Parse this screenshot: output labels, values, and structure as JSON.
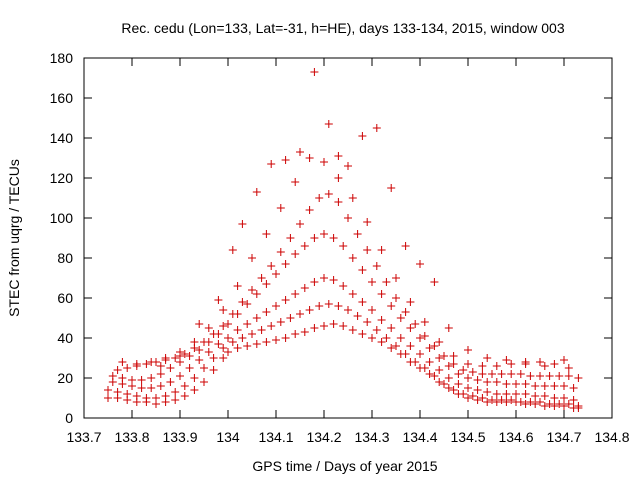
{
  "chart_data": {
    "type": "scatter",
    "title": "Rec. cedu (Lon=133, Lat=-31, h=HE), days 133-134, 2015, window 003",
    "xlabel": "GPS time / Days of year 2015",
    "ylabel": "STEC from uqrg / TECUs",
    "xlim": [
      133.7,
      134.8
    ],
    "ylim": [
      0,
      180
    ],
    "xticks": [
      133.7,
      133.8,
      133.9,
      134.0,
      134.1,
      134.2,
      134.3,
      134.4,
      134.5,
      134.6,
      134.7,
      134.8
    ],
    "xtick_labels": [
      "133.7",
      "133.8",
      "133.9",
      "134",
      "134.1",
      "134.2",
      "134.3",
      "134.4",
      "134.5",
      "134.6",
      "134.7",
      "134.8"
    ],
    "yticks": [
      0,
      20,
      40,
      60,
      80,
      100,
      120,
      140,
      160,
      180
    ],
    "ytick_labels": [
      "0",
      "20",
      "40",
      "60",
      "80",
      "100",
      "120",
      "140",
      "160",
      "180"
    ],
    "grid": false,
    "marker": "plus",
    "color": "#cc0000",
    "series": [
      {
        "x": [
          133.75,
          133.77,
          133.79,
          133.81,
          133.83,
          133.85,
          133.87,
          133.89,
          133.91,
          133.93,
          133.95,
          133.97,
          133.99,
          134.0,
          134.02,
          134.04,
          134.06,
          134.08,
          134.1,
          134.12,
          134.14,
          134.16,
          134.18,
          134.2,
          134.22,
          134.24,
          134.26,
          134.28,
          134.3,
          134.32,
          134.34,
          134.36,
          134.38,
          134.4,
          134.42,
          134.44,
          134.46,
          134.48,
          134.5,
          134.52,
          134.54,
          134.56,
          134.58,
          134.6,
          134.62,
          134.64,
          134.66,
          134.68,
          134.7,
          134.72,
          134.73
        ],
        "y": [
          10,
          10,
          9,
          8,
          8,
          7,
          8,
          9,
          11,
          14,
          18,
          24,
          30,
          33,
          35,
          36,
          37,
          38,
          39,
          40,
          42,
          43,
          45,
          46,
          47,
          46,
          44,
          42,
          40,
          38,
          35,
          32,
          28,
          25,
          22,
          18,
          15,
          12,
          10,
          9,
          8,
          8,
          8,
          8,
          7,
          7,
          6,
          6,
          6,
          5,
          5
        ]
      },
      {
        "x": [
          133.75,
          133.77,
          133.79,
          133.81,
          133.83,
          133.85,
          133.87,
          133.89,
          133.91,
          133.93,
          133.95,
          133.97,
          133.99,
          134.01,
          134.03,
          134.05,
          134.07,
          134.09,
          134.11,
          134.13,
          134.15,
          134.17,
          134.19,
          134.21,
          134.23,
          134.25,
          134.27,
          134.29,
          134.31,
          134.33,
          134.35,
          134.37,
          134.39,
          134.41,
          134.43,
          134.45,
          134.47,
          134.49,
          134.51,
          134.53,
          134.55,
          134.57,
          134.59,
          134.61,
          134.63,
          134.65,
          134.67,
          134.69,
          134.71,
          134.73
        ],
        "y": [
          14,
          13,
          12,
          11,
          10,
          10,
          11,
          13,
          16,
          20,
          25,
          30,
          35,
          38,
          40,
          42,
          44,
          46,
          48,
          50,
          52,
          54,
          56,
          57,
          56,
          54,
          51,
          48,
          44,
          40,
          36,
          32,
          28,
          25,
          21,
          17,
          14,
          12,
          11,
          10,
          9,
          9,
          9,
          8,
          8,
          8,
          7,
          7,
          7,
          6
        ]
      },
      {
        "x": [
          133.76,
          133.78,
          133.8,
          133.82,
          133.84,
          133.86,
          133.88,
          133.9,
          133.92,
          133.94,
          133.96,
          133.98,
          134.0,
          134.02,
          134.04,
          134.06,
          134.08,
          134.1,
          134.12,
          134.14,
          134.16,
          134.18,
          134.2,
          134.22,
          134.24,
          134.26,
          134.28,
          134.3,
          134.32,
          134.34,
          134.36,
          134.38,
          134.4,
          134.42,
          134.44,
          134.46,
          134.48,
          134.5,
          134.52,
          134.54,
          134.56,
          134.58,
          134.6,
          134.62,
          134.64,
          134.66,
          134.68,
          134.7,
          134.72
        ],
        "y": [
          18,
          17,
          16,
          15,
          15,
          16,
          18,
          21,
          25,
          29,
          33,
          37,
          40,
          44,
          47,
          50,
          53,
          56,
          59,
          62,
          65,
          68,
          70,
          69,
          66,
          62,
          58,
          54,
          49,
          45,
          40,
          36,
          32,
          28,
          24,
          20,
          17,
          15,
          14,
          13,
          12,
          12,
          12,
          12,
          11,
          11,
          10,
          10,
          9
        ]
      },
      {
        "x": [
          133.76,
          133.78,
          133.8,
          133.82,
          133.84,
          133.86,
          133.88,
          133.9,
          133.92,
          133.94,
          133.96,
          133.98,
          134.0,
          134.02,
          134.04,
          134.06,
          134.08,
          134.1,
          134.12,
          134.14,
          134.16,
          134.18,
          134.2,
          134.22,
          134.24,
          134.26,
          134.28,
          134.3,
          134.32,
          134.34,
          134.36,
          134.38,
          134.4,
          134.42,
          134.44,
          134.46,
          134.48,
          134.5,
          134.52,
          134.54,
          134.56,
          134.58,
          134.6,
          134.62,
          134.64,
          134.66,
          134.68,
          134.7,
          134.72
        ],
        "y": [
          21,
          20,
          19,
          19,
          20,
          22,
          25,
          28,
          31,
          34,
          38,
          42,
          47,
          52,
          57,
          62,
          67,
          72,
          77,
          82,
          86,
          90,
          92,
          90,
          86,
          80,
          74,
          68,
          62,
          56,
          50,
          45,
          40,
          35,
          30,
          26,
          22,
          20,
          19,
          18,
          18,
          17,
          17,
          17,
          16,
          16,
          16,
          16,
          15
        ]
      },
      {
        "x": [
          133.77,
          133.79,
          133.81,
          133.83,
          133.85,
          133.87,
          133.89,
          133.91,
          133.93,
          133.95,
          133.97,
          133.99,
          134.01,
          134.03,
          134.05,
          134.07,
          134.09,
          134.11,
          134.13,
          134.15,
          134.17,
          134.19,
          134.21,
          134.23,
          134.25,
          134.27,
          134.29,
          134.31,
          134.33,
          134.35,
          134.37,
          134.39,
          134.41,
          134.43,
          134.45,
          134.47,
          134.49,
          134.51,
          134.53,
          134.55,
          134.57,
          134.59,
          134.61,
          134.63,
          134.65,
          134.67,
          134.69,
          134.71,
          134.73
        ],
        "y": [
          24,
          25,
          26,
          27,
          28,
          29,
          30,
          32,
          35,
          38,
          42,
          46,
          52,
          58,
          64,
          70,
          76,
          83,
          90,
          97,
          104,
          110,
          112,
          108,
          100,
          92,
          84,
          76,
          68,
          60,
          53,
          47,
          41,
          36,
          31,
          27,
          24,
          23,
          22,
          22,
          22,
          22,
          22,
          21,
          21,
          21,
          21,
          21,
          20
        ]
      },
      {
        "x": [
          133.78,
          133.81,
          133.84,
          133.87,
          133.9,
          133.93,
          133.96,
          133.99,
          134.02,
          134.05,
          134.08,
          134.11,
          134.14,
          134.17,
          134.2,
          134.23,
          134.26,
          134.29,
          134.32,
          134.35,
          134.38,
          134.41,
          134.44,
          134.47,
          134.5,
          134.53,
          134.56,
          134.59,
          134.62,
          134.65,
          134.68,
          134.71
        ],
        "y": [
          28,
          27,
          28,
          30,
          33,
          38,
          45,
          54,
          66,
          80,
          92,
          105,
          118,
          130,
          128,
          120,
          110,
          98,
          84,
          70,
          58,
          48,
          38,
          31,
          27,
          26,
          26,
          27,
          28,
          28,
          27,
          25
        ]
      },
      {
        "x": [
          133.86,
          133.9,
          133.94,
          133.98,
          134.01,
          134.03,
          134.06,
          134.09,
          134.12,
          134.15,
          134.18,
          134.21,
          134.23,
          134.25,
          134.28,
          134.31,
          134.34,
          134.37,
          134.4,
          134.43,
          134.46,
          134.5,
          134.54,
          134.58,
          134.62,
          134.66,
          134.7
        ],
        "y": [
          26,
          31,
          47,
          59,
          84,
          97,
          113,
          127,
          129,
          133,
          173,
          147,
          131,
          126,
          141,
          145,
          115,
          86,
          77,
          68,
          45,
          34,
          30,
          29,
          27,
          26,
          29
        ]
      }
    ]
  }
}
